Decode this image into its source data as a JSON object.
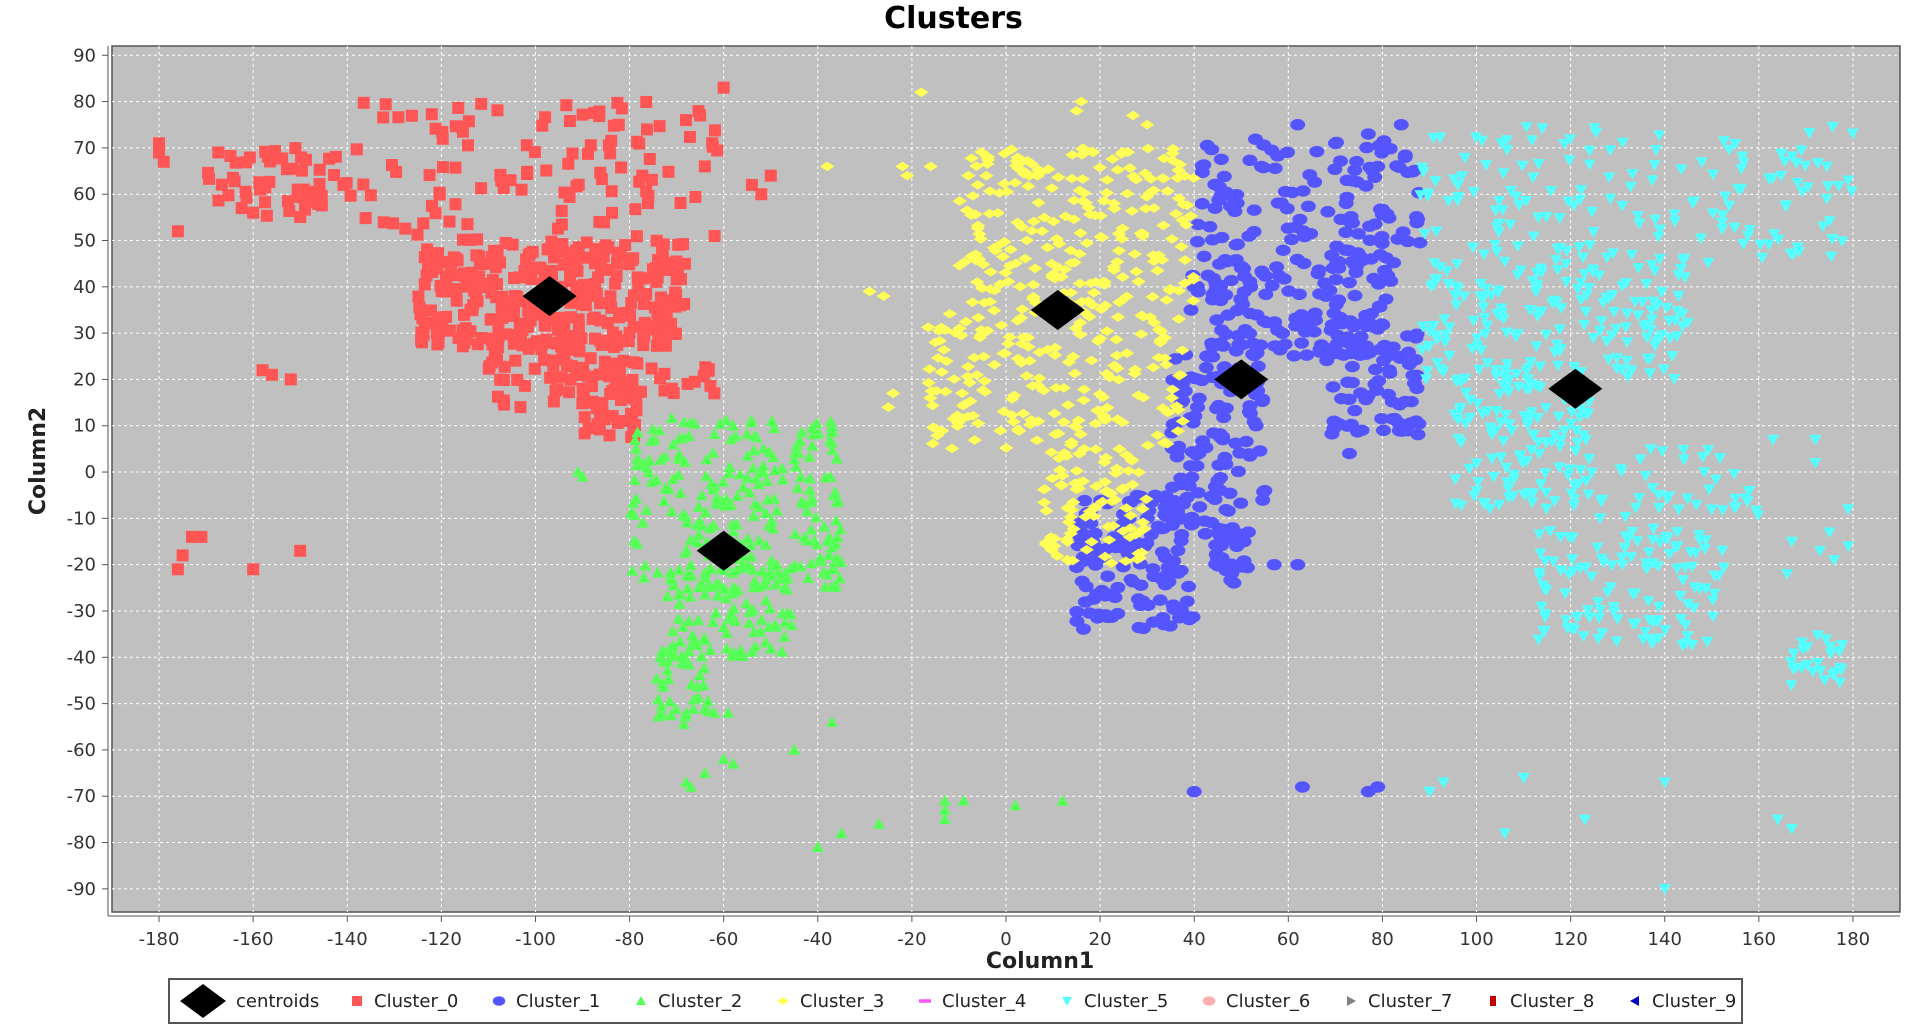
{
  "chart_data": {
    "type": "scatter",
    "title": "Clusters",
    "xlabel": "Column1",
    "ylabel": "Column2",
    "xlim": [
      -190,
      190
    ],
    "ylim": [
      -95,
      92
    ],
    "xticks": [
      -180,
      -160,
      -140,
      -120,
      -100,
      -80,
      -60,
      -40,
      -20,
      0,
      20,
      40,
      60,
      80,
      100,
      120,
      140,
      160,
      180
    ],
    "yticks": [
      90,
      80,
      70,
      60,
      50,
      40,
      30,
      20,
      10,
      0,
      -10,
      -20,
      -30,
      -40,
      -50,
      -60,
      -70,
      -80,
      -90
    ],
    "grid": true,
    "background": "#c0c0c0",
    "legend_position": "bottom",
    "series": [
      {
        "name": "centroids",
        "marker": "diamond",
        "color": "#000000",
        "points": [
          [
            -97,
            38
          ],
          [
            -60,
            -17
          ],
          [
            11,
            35
          ],
          [
            50,
            20
          ],
          [
            121,
            18
          ]
        ]
      },
      {
        "name": "Cluster_0",
        "marker": "square",
        "color": "#ff5555",
        "regions": [
          {
            "xr": [
              -170,
              -140
            ],
            "yr": [
              55,
              70
            ],
            "n": 55
          },
          {
            "xr": [
              -140,
              -60
            ],
            "yr": [
              50,
              80
            ],
            "n": 110
          },
          {
            "xr": [
              -125,
              -68
            ],
            "yr": [
              27,
              50
            ],
            "n": 300
          },
          {
            "xr": [
              -110,
              -80
            ],
            "yr": [
              14,
              30
            ],
            "n": 70
          },
          {
            "xr": [
              -92,
              -78
            ],
            "yr": [
              7,
              18
            ],
            "n": 30
          },
          {
            "xr": [
              -85,
              -62
            ],
            "yr": [
              17,
              24
            ],
            "n": 25
          }
        ],
        "points": [
          [
            -180,
            71
          ],
          [
            -180,
            69
          ],
          [
            -179,
            67
          ],
          [
            -176,
            52
          ],
          [
            -160,
            56
          ],
          [
            -158,
            22
          ],
          [
            -156,
            21
          ],
          [
            -152,
            20
          ],
          [
            -176,
            -21
          ],
          [
            -175,
            -18
          ],
          [
            -173,
            -14
          ],
          [
            -171,
            -14
          ],
          [
            -160,
            -21
          ],
          [
            -150,
            -17
          ],
          [
            -60,
            83
          ],
          [
            -65,
            77
          ],
          [
            -54,
            62
          ],
          [
            -50,
            64
          ],
          [
            -52,
            60
          ],
          [
            -71,
            18
          ],
          [
            -62,
            17
          ],
          [
            -64,
            66
          ],
          [
            -68,
            76
          ]
        ]
      },
      {
        "name": "Cluster_1",
        "marker": "circle",
        "color": "#5555ff",
        "regions": [
          {
            "xr": [
              40,
              88
            ],
            "yr": [
              45,
              72
            ],
            "n": 130
          },
          {
            "xr": [
              38,
              82
            ],
            "yr": [
              25,
              45
            ],
            "n": 140
          },
          {
            "xr": [
              35,
              55
            ],
            "yr": [
              -15,
              25
            ],
            "n": 110
          },
          {
            "xr": [
              15,
              40
            ],
            "yr": [
              -34,
              -5
            ],
            "n": 140
          },
          {
            "xr": [
              68,
              88
            ],
            "yr": [
              8,
              30
            ],
            "n": 70
          },
          {
            "xr": [
              44,
              52
            ],
            "yr": [
              -25,
              -12
            ],
            "n": 30
          }
        ],
        "points": [
          [
            40,
            -69
          ],
          [
            63,
            -68
          ],
          [
            77,
            -69
          ],
          [
            79,
            -68
          ],
          [
            55,
            -4
          ],
          [
            73,
            4
          ],
          [
            57,
            -20
          ],
          [
            62,
            -20
          ],
          [
            62,
            75
          ],
          [
            77,
            73
          ],
          [
            84,
            75
          ],
          [
            80,
            71
          ]
        ]
      },
      {
        "name": "Cluster_2",
        "marker": "triangle",
        "color": "#55ff55",
        "regions": [
          {
            "xr": [
              -80,
              -35
            ],
            "yr": [
              -25,
              12
            ],
            "n": 230
          },
          {
            "xr": [
              -72,
              -45
            ],
            "yr": [
              -40,
              -20
            ],
            "n": 100
          },
          {
            "xr": [
              -75,
              -63
            ],
            "yr": [
              -55,
              -38
            ],
            "n": 40
          }
        ],
        "points": [
          [
            -91,
            0
          ],
          [
            -90,
            -1
          ],
          [
            -62,
            -52
          ],
          [
            -59,
            -52
          ],
          [
            -37,
            -54
          ],
          [
            -60,
            -62
          ],
          [
            -58,
            -63
          ],
          [
            -45,
            -60
          ],
          [
            -68,
            -67
          ],
          [
            -67,
            -68
          ],
          [
            -64,
            -65
          ],
          [
            -40,
            -81
          ],
          [
            -35,
            -78
          ],
          [
            -27,
            -76
          ],
          [
            -13,
            -71
          ],
          [
            -13,
            -75
          ],
          [
            -13,
            -73
          ],
          [
            -9,
            -71
          ],
          [
            2,
            -72
          ],
          [
            12,
            -71
          ]
        ]
      },
      {
        "name": "Cluster_3",
        "marker": "diamond-small",
        "color": "#ffff55",
        "regions": [
          {
            "xr": [
              -10,
              40
            ],
            "yr": [
              35,
              70
            ],
            "n": 220
          },
          {
            "xr": [
              -17,
              38
            ],
            "yr": [
              5,
              35
            ],
            "n": 180
          },
          {
            "xr": [
              8,
              30
            ],
            "yr": [
              -20,
              5
            ],
            "n": 90
          }
        ],
        "points": [
          [
            -18,
            82
          ],
          [
            -22,
            66
          ],
          [
            -21,
            64
          ],
          [
            -16,
            66
          ],
          [
            -8,
            64
          ],
          [
            -38,
            66
          ],
          [
            -29,
            39
          ],
          [
            -26,
            38
          ],
          [
            -24,
            17
          ],
          [
            -25,
            14
          ],
          [
            15,
            78
          ],
          [
            16,
            80
          ],
          [
            27,
            77
          ],
          [
            30,
            75
          ],
          [
            -6,
            62
          ],
          [
            -15,
            28
          ]
        ]
      },
      {
        "name": "Cluster_4",
        "marker": "dash",
        "color": "#ff55ff",
        "points": []
      },
      {
        "name": "Cluster_5",
        "marker": "triangle-down",
        "color": "#55ffff",
        "regions": [
          {
            "xr": [
              88,
              180
            ],
            "yr": [
              45,
              75
            ],
            "n": 160
          },
          {
            "xr": [
              88,
              145
            ],
            "yr": [
              20,
              45
            ],
            "n": 180
          },
          {
            "xr": [
              95,
              125
            ],
            "yr": [
              -8,
              20
            ],
            "n": 120
          },
          {
            "xr": [
              113,
              153
            ],
            "yr": [
              -38,
              -12
            ],
            "n": 120
          },
          {
            "xr": [
              125,
              160
            ],
            "yr": [
              -10,
              5
            ],
            "n": 40
          },
          {
            "xr": [
              166,
              178
            ],
            "yr": [
              -46,
              -35
            ],
            "n": 25
          }
        ],
        "points": [
          [
            93,
            -67
          ],
          [
            90,
            -69
          ],
          [
            106,
            -78
          ],
          [
            110,
            -66
          ],
          [
            123,
            -75
          ],
          [
            140,
            -67
          ],
          [
            164,
            -75
          ],
          [
            167,
            -77
          ],
          [
            140,
            -90
          ],
          [
            179,
            -8
          ],
          [
            179,
            -16
          ],
          [
            176,
            -19
          ],
          [
            173,
            -17
          ],
          [
            167,
            -15
          ],
          [
            163,
            7
          ],
          [
            172,
            7
          ],
          [
            172,
            2
          ],
          [
            175,
            -13
          ],
          [
            166,
            -22
          ],
          [
            179,
            63
          ]
        ]
      },
      {
        "name": "Cluster_6",
        "marker": "circle",
        "color": "#ffafaf",
        "points": []
      },
      {
        "name": "Cluster_7",
        "marker": "triangle-right",
        "color": "#808080",
        "points": []
      },
      {
        "name": "Cluster_8",
        "marker": "square-small",
        "color": "#c00000",
        "points": []
      },
      {
        "name": "Cluster_9",
        "marker": "triangle-left",
        "color": "#0000c0",
        "points": []
      }
    ]
  }
}
